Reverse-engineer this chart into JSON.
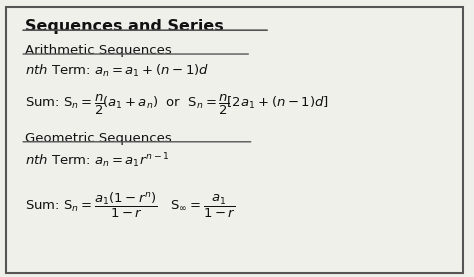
{
  "title": "Sequences and Series",
  "bg_color": "#f0f0eb",
  "border_color": "#555555",
  "text_color": "#111111",
  "figsize": [
    4.74,
    2.77
  ],
  "dpi": 100
}
